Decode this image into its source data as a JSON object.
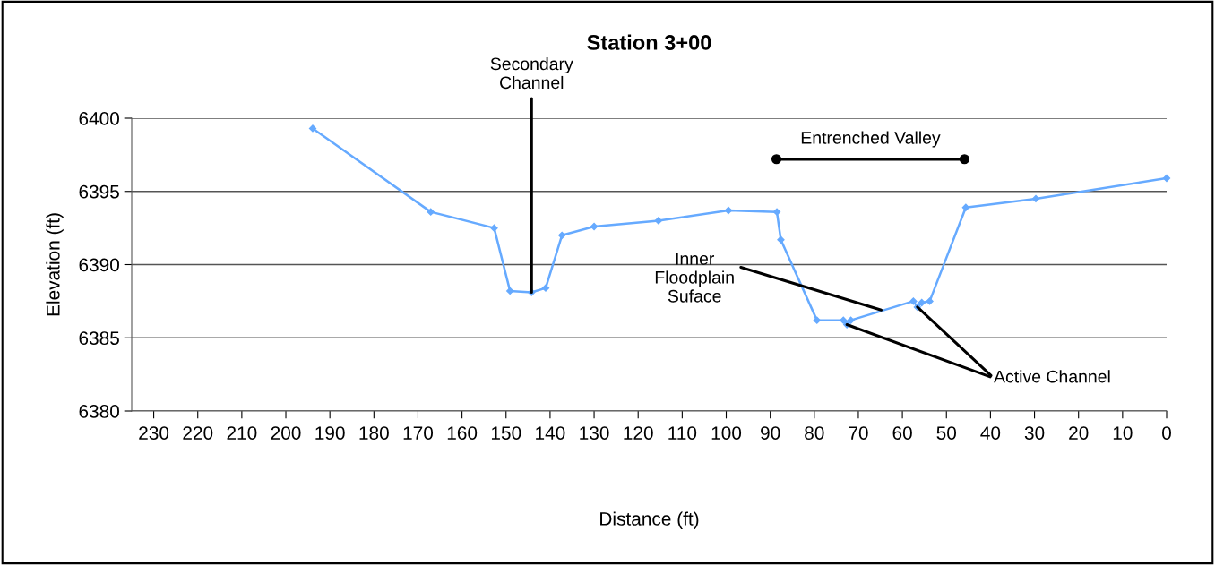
{
  "chart_data": {
    "type": "line",
    "title": "Station 3+00",
    "xlabel": "Distance (ft)",
    "ylabel": "Elevation (ft)",
    "x": [
      193.9,
      167.1,
      152.7,
      149.1,
      144.2,
      141.0,
      137.3,
      130.0,
      115.4,
      99.5,
      88.5,
      87.6,
      79.4,
      73.4,
      72.6,
      71.7,
      57.5,
      56.6,
      55.6,
      53.8,
      45.6,
      29.7,
      0
    ],
    "series": [
      {
        "color": "#66aaff",
        "values": [
          6399.3,
          6393.6,
          6392.5,
          6388.2,
          6388.1,
          6388.4,
          6392.0,
          6392.6,
          6393.0,
          6393.7,
          6393.6,
          6391.7,
          6386.2,
          6386.2,
          6385.9,
          6386.2,
          6387.5,
          6387.1,
          6387.4,
          6387.5,
          6393.9,
          6394.5,
          6395.9
        ]
      },
      {
        "name": "Entrenched Valley",
        "color": "#000000",
        "marker": "circle",
        "x": [
          88.6,
          45.9
        ],
        "values": [
          6397.2,
          6397.2
        ]
      }
    ],
    "xlim": [
      235,
      0
    ],
    "xticks": [
      230,
      220,
      210,
      200,
      190,
      180,
      170,
      160,
      150,
      140,
      130,
      120,
      110,
      100,
      90,
      80,
      70,
      60,
      50,
      40,
      30,
      20,
      10,
      0
    ],
    "ylim": [
      6380,
      6400
    ],
    "yticks": [
      6380,
      6385,
      6390,
      6395,
      6400
    ],
    "grid": "y",
    "marker": "diamond",
    "line_style": "solid",
    "annotations": [
      {
        "text": "Secondary\nChannel",
        "x": 144.2,
        "y": 6388.1
      },
      {
        "text": "Inner\nFloodplain\nSuface",
        "x": 64.8,
        "y": 6386.9
      },
      {
        "text": "Active Channel",
        "x": 72.6,
        "y": 6385.9
      }
    ]
  }
}
